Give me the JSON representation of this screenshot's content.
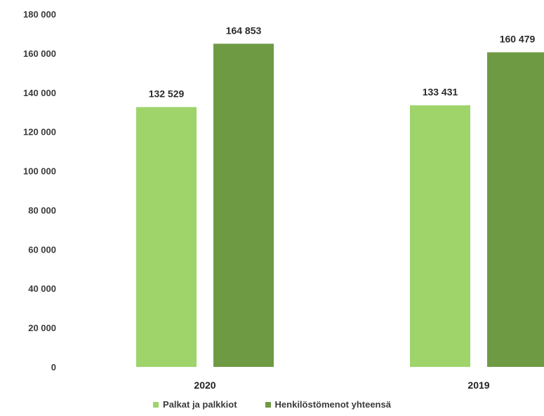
{
  "chart_data": {
    "type": "bar",
    "title": "",
    "xlabel": "",
    "ylabel": "",
    "categories": [
      "2020",
      "2019"
    ],
    "series": [
      {
        "name": "Palkat ja palkkiot",
        "values": [
          132529,
          133431
        ],
        "color": "#9ed46a",
        "labels": [
          "132 529",
          "133 431"
        ]
      },
      {
        "name": "Henkilöstömenot yhteensä",
        "values": [
          164853,
          160479
        ],
        "color": "#6e9a44",
        "labels": [
          "164 853",
          "160 479"
        ]
      }
    ],
    "ylim": [
      0,
      180000
    ],
    "yticks": [
      0,
      20000,
      40000,
      60000,
      80000,
      100000,
      120000,
      140000,
      160000,
      180000
    ],
    "ytick_labels": [
      "0",
      "20 000",
      "40 000",
      "60 000",
      "80 000",
      "100 000",
      "120 000",
      "140 000",
      "160 000",
      "180 000"
    ],
    "grid": false,
    "legend_position": "bottom"
  },
  "legend": {
    "items": [
      {
        "label": "Palkat ja palkkiot",
        "color": "#9ed46a"
      },
      {
        "label": "Henkilöstömenot yhteensä",
        "color": "#6e9a44"
      }
    ]
  }
}
